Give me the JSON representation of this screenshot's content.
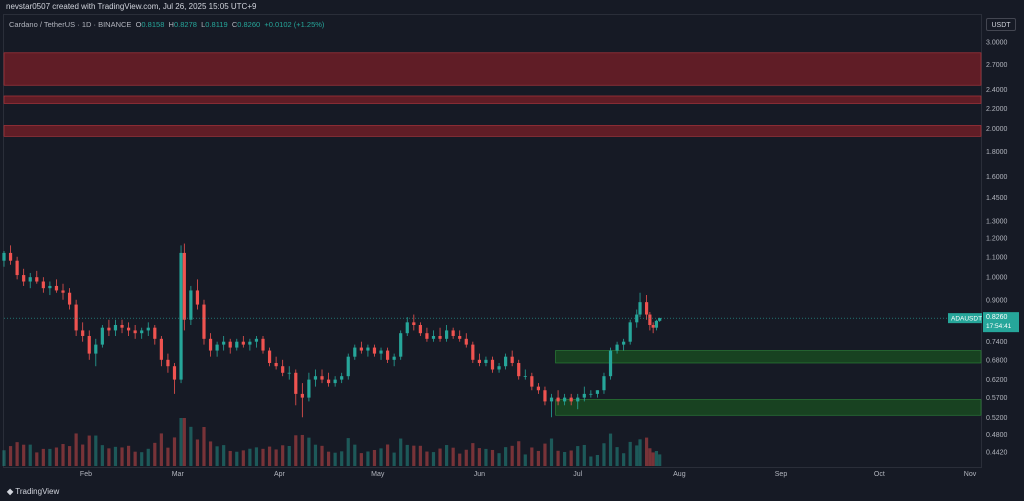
{
  "header": {
    "credit": "nevstar0507 created with TradingView.com, Jul 26, 2025 15:05 UTC+9"
  },
  "legend": {
    "symbol": "Cardano / TetherUS · 1D · BINANCE",
    "open_label": "O",
    "open": "0.8158",
    "high_label": "H",
    "high": "0.8278",
    "low_label": "L",
    "low": "0.8119",
    "close_label": "C",
    "close": "0.8260",
    "change": "+0.0102 (+1.25%)"
  },
  "price_axis": {
    "currency": "USDT",
    "ticks": [
      "3.0000",
      "2.7000",
      "2.4000",
      "2.2000",
      "2.0000",
      "1.8000",
      "1.6000",
      "1.4500",
      "1.3000",
      "1.2000",
      "1.1000",
      "1.0000",
      "0.9000",
      "0.8000",
      "0.7400",
      "0.6800",
      "0.6200",
      "0.5700",
      "0.5200",
      "0.4800",
      "0.4420"
    ]
  },
  "time_axis": {
    "ticks": [
      "Feb",
      "Mar",
      "Apr",
      "May",
      "Jun",
      "Jul",
      "Aug",
      "Sep",
      "Oct",
      "Nov"
    ]
  },
  "last_price": {
    "symbol": "ADAUSDT",
    "price": "0.8260",
    "countdown": "17:54:41"
  },
  "footer": {
    "brand": "TradingView"
  },
  "colors": {
    "up": "#26a69a",
    "down": "#ef5350",
    "supply_zone": "#7a1f27",
    "demand_zone": "#1b5e20",
    "background": "#161a25"
  },
  "chart_data": {
    "type": "candlestick",
    "symbol": "ADAUSDT",
    "interval": "1D",
    "exchange": "BINANCE",
    "y_scale": "log",
    "ylim": [
      0.43,
      3.2
    ],
    "xlim": [
      "2025-01-07",
      "2025-11-01"
    ],
    "grid": false,
    "zones": [
      {
        "kind": "supply",
        "from": 2.45,
        "to": 2.85
      },
      {
        "kind": "supply",
        "from": 2.25,
        "to": 2.33
      },
      {
        "kind": "supply",
        "from": 1.93,
        "to": 2.03
      },
      {
        "kind": "demand",
        "from": 0.67,
        "to": 0.71
      },
      {
        "kind": "demand",
        "from": 0.525,
        "to": 0.565
      }
    ],
    "candles": [
      [
        "2025-01-07",
        1.08,
        1.13,
        1.05,
        1.12
      ],
      [
        "2025-01-09",
        1.12,
        1.16,
        1.06,
        1.08
      ],
      [
        "2025-01-11",
        1.08,
        1.1,
        0.99,
        1.01
      ],
      [
        "2025-01-13",
        1.01,
        1.04,
        0.96,
        0.98
      ],
      [
        "2025-01-15",
        0.98,
        1.02,
        0.95,
        1.0
      ],
      [
        "2025-01-17",
        1.0,
        1.03,
        0.97,
        0.98
      ],
      [
        "2025-01-19",
        0.98,
        1.0,
        0.93,
        0.95
      ],
      [
        "2025-01-21",
        0.95,
        0.98,
        0.92,
        0.96
      ],
      [
        "2025-01-23",
        0.96,
        0.99,
        0.93,
        0.94
      ],
      [
        "2025-01-25",
        0.94,
        0.97,
        0.9,
        0.93
      ],
      [
        "2025-01-27",
        0.93,
        0.95,
        0.86,
        0.88
      ],
      [
        "2025-01-29",
        0.88,
        0.9,
        0.76,
        0.78
      ],
      [
        "2025-01-31",
        0.78,
        0.81,
        0.74,
        0.76
      ],
      [
        "2025-02-02",
        0.76,
        0.78,
        0.68,
        0.7
      ],
      [
        "2025-02-04",
        0.7,
        0.75,
        0.66,
        0.73
      ],
      [
        "2025-02-06",
        0.73,
        0.8,
        0.72,
        0.79
      ],
      [
        "2025-02-08",
        0.79,
        0.82,
        0.76,
        0.78
      ],
      [
        "2025-02-10",
        0.78,
        0.82,
        0.76,
        0.8
      ],
      [
        "2025-02-12",
        0.8,
        0.82,
        0.77,
        0.79
      ],
      [
        "2025-02-14",
        0.79,
        0.81,
        0.76,
        0.78
      ],
      [
        "2025-02-16",
        0.78,
        0.8,
        0.75,
        0.77
      ],
      [
        "2025-02-18",
        0.77,
        0.79,
        0.75,
        0.78
      ],
      [
        "2025-02-20",
        0.78,
        0.81,
        0.76,
        0.79
      ],
      [
        "2025-02-22",
        0.79,
        0.8,
        0.73,
        0.75
      ],
      [
        "2025-02-24",
        0.75,
        0.76,
        0.66,
        0.68
      ],
      [
        "2025-02-26",
        0.68,
        0.7,
        0.64,
        0.66
      ],
      [
        "2025-02-28",
        0.66,
        0.67,
        0.58,
        0.62
      ],
      [
        "2025-03-02",
        0.62,
        1.16,
        0.61,
        1.12
      ],
      [
        "2025-03-03",
        1.12,
        1.17,
        0.78,
        0.82
      ],
      [
        "2025-03-05",
        0.82,
        0.96,
        0.8,
        0.94
      ],
      [
        "2025-03-07",
        0.94,
        0.99,
        0.86,
        0.88
      ],
      [
        "2025-03-09",
        0.88,
        0.9,
        0.73,
        0.75
      ],
      [
        "2025-03-11",
        0.75,
        0.77,
        0.69,
        0.71
      ],
      [
        "2025-03-13",
        0.71,
        0.74,
        0.69,
        0.73
      ],
      [
        "2025-03-15",
        0.73,
        0.76,
        0.71,
        0.74
      ],
      [
        "2025-03-17",
        0.74,
        0.75,
        0.7,
        0.72
      ],
      [
        "2025-03-19",
        0.72,
        0.75,
        0.71,
        0.74
      ],
      [
        "2025-03-21",
        0.74,
        0.76,
        0.72,
        0.73
      ],
      [
        "2025-03-23",
        0.73,
        0.75,
        0.71,
        0.74
      ],
      [
        "2025-03-25",
        0.74,
        0.76,
        0.72,
        0.75
      ],
      [
        "2025-03-27",
        0.75,
        0.76,
        0.7,
        0.71
      ],
      [
        "2025-03-29",
        0.71,
        0.72,
        0.66,
        0.67
      ],
      [
        "2025-03-31",
        0.67,
        0.69,
        0.65,
        0.66
      ],
      [
        "2025-04-02",
        0.66,
        0.68,
        0.63,
        0.64
      ],
      [
        "2025-04-04",
        0.64,
        0.66,
        0.62,
        0.64
      ],
      [
        "2025-04-06",
        0.64,
        0.65,
        0.55,
        0.58
      ],
      [
        "2025-04-08",
        0.58,
        0.61,
        0.52,
        0.57
      ],
      [
        "2025-04-10",
        0.57,
        0.64,
        0.56,
        0.62
      ],
      [
        "2025-04-12",
        0.62,
        0.65,
        0.6,
        0.63
      ],
      [
        "2025-04-14",
        0.63,
        0.65,
        0.61,
        0.62
      ],
      [
        "2025-04-16",
        0.62,
        0.64,
        0.6,
        0.61
      ],
      [
        "2025-04-18",
        0.61,
        0.63,
        0.6,
        0.62
      ],
      [
        "2025-04-20",
        0.62,
        0.64,
        0.61,
        0.63
      ],
      [
        "2025-04-22",
        0.63,
        0.7,
        0.62,
        0.69
      ],
      [
        "2025-04-24",
        0.69,
        0.73,
        0.68,
        0.72
      ],
      [
        "2025-04-26",
        0.72,
        0.74,
        0.7,
        0.71
      ],
      [
        "2025-04-28",
        0.71,
        0.73,
        0.69,
        0.72
      ],
      [
        "2025-04-30",
        0.72,
        0.73,
        0.69,
        0.7
      ],
      [
        "2025-05-02",
        0.7,
        0.72,
        0.68,
        0.71
      ],
      [
        "2025-05-04",
        0.71,
        0.72,
        0.67,
        0.68
      ],
      [
        "2025-05-06",
        0.68,
        0.7,
        0.66,
        0.69
      ],
      [
        "2025-05-08",
        0.69,
        0.78,
        0.68,
        0.77
      ],
      [
        "2025-05-10",
        0.77,
        0.83,
        0.76,
        0.81
      ],
      [
        "2025-05-12",
        0.81,
        0.84,
        0.78,
        0.8
      ],
      [
        "2025-05-14",
        0.8,
        0.81,
        0.76,
        0.77
      ],
      [
        "2025-05-16",
        0.77,
        0.79,
        0.74,
        0.75
      ],
      [
        "2025-05-18",
        0.75,
        0.78,
        0.74,
        0.76
      ],
      [
        "2025-05-20",
        0.76,
        0.79,
        0.74,
        0.75
      ],
      [
        "2025-05-22",
        0.75,
        0.8,
        0.74,
        0.78
      ],
      [
        "2025-05-24",
        0.78,
        0.79,
        0.75,
        0.76
      ],
      [
        "2025-05-26",
        0.76,
        0.78,
        0.74,
        0.75
      ],
      [
        "2025-05-28",
        0.75,
        0.77,
        0.72,
        0.73
      ],
      [
        "2025-05-30",
        0.73,
        0.74,
        0.67,
        0.68
      ],
      [
        "2025-06-01",
        0.68,
        0.7,
        0.66,
        0.67
      ],
      [
        "2025-06-03",
        0.67,
        0.69,
        0.66,
        0.68
      ],
      [
        "2025-06-05",
        0.68,
        0.69,
        0.64,
        0.65
      ],
      [
        "2025-06-07",
        0.65,
        0.67,
        0.64,
        0.66
      ],
      [
        "2025-06-09",
        0.66,
        0.7,
        0.65,
        0.69
      ],
      [
        "2025-06-11",
        0.69,
        0.71,
        0.66,
        0.67
      ],
      [
        "2025-06-13",
        0.67,
        0.68,
        0.62,
        0.63
      ],
      [
        "2025-06-15",
        0.63,
        0.65,
        0.62,
        0.63
      ],
      [
        "2025-06-17",
        0.63,
        0.64,
        0.59,
        0.6
      ],
      [
        "2025-06-19",
        0.6,
        0.61,
        0.58,
        0.59
      ],
      [
        "2025-06-21",
        0.59,
        0.6,
        0.55,
        0.56
      ],
      [
        "2025-06-23",
        0.56,
        0.58,
        0.52,
        0.57
      ],
      [
        "2025-06-25",
        0.57,
        0.59,
        0.55,
        0.56
      ],
      [
        "2025-06-27",
        0.56,
        0.58,
        0.55,
        0.57
      ],
      [
        "2025-06-29",
        0.57,
        0.58,
        0.55,
        0.56
      ],
      [
        "2025-07-01",
        0.56,
        0.58,
        0.54,
        0.57
      ],
      [
        "2025-07-03",
        0.57,
        0.6,
        0.56,
        0.58
      ],
      [
        "2025-07-05",
        0.58,
        0.59,
        0.57,
        0.58
      ],
      [
        "2025-07-07",
        0.58,
        0.59,
        0.57,
        0.59
      ],
      [
        "2025-07-09",
        0.59,
        0.64,
        0.58,
        0.63
      ],
      [
        "2025-07-11",
        0.63,
        0.72,
        0.62,
        0.71
      ],
      [
        "2025-07-13",
        0.71,
        0.74,
        0.7,
        0.73
      ],
      [
        "2025-07-15",
        0.73,
        0.75,
        0.71,
        0.74
      ],
      [
        "2025-07-17",
        0.74,
        0.82,
        0.73,
        0.81
      ],
      [
        "2025-07-19",
        0.81,
        0.86,
        0.79,
        0.84
      ],
      [
        "2025-07-20",
        0.84,
        0.93,
        0.83,
        0.89
      ],
      [
        "2025-07-22",
        0.89,
        0.92,
        0.82,
        0.84
      ],
      [
        "2025-07-23",
        0.84,
        0.85,
        0.78,
        0.8
      ],
      [
        "2025-07-24",
        0.8,
        0.81,
        0.77,
        0.79
      ],
      [
        "2025-07-25",
        0.79,
        0.82,
        0.78,
        0.8158
      ],
      [
        "2025-07-26",
        0.8158,
        0.8278,
        0.8119,
        0.826
      ]
    ]
  }
}
